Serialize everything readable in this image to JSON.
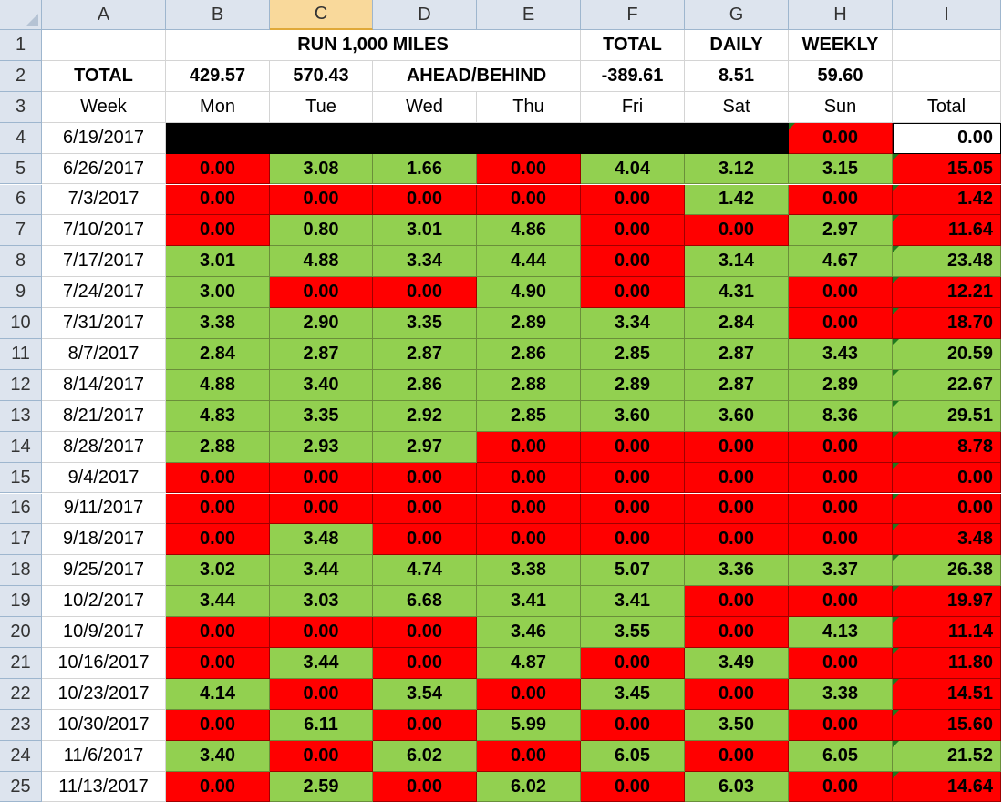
{
  "columns": [
    "A",
    "B",
    "C",
    "D",
    "E",
    "F",
    "G",
    "H",
    "I"
  ],
  "selected_column": "C",
  "header_rows": [
    {
      "row": 1,
      "cells": [
        {
          "col": "B",
          "span": 4,
          "text": "RUN 1,000 MILES",
          "bold": true
        },
        {
          "col": "F",
          "text": "TOTAL",
          "bold": true
        },
        {
          "col": "G",
          "text": "DAILY",
          "bold": true
        },
        {
          "col": "H",
          "text": "WEEKLY",
          "bold": true
        }
      ]
    },
    {
      "row": 2,
      "cells": [
        {
          "col": "A",
          "text": "TOTAL",
          "bold": true
        },
        {
          "col": "B",
          "text": "429.57",
          "bold": true
        },
        {
          "col": "C",
          "text": "570.43",
          "bold": true
        },
        {
          "col": "D",
          "span": 2,
          "text": "AHEAD/BEHIND",
          "bold": true
        },
        {
          "col": "F",
          "text": "-389.61",
          "bold": true
        },
        {
          "col": "G",
          "text": "8.51",
          "bold": true
        },
        {
          "col": "H",
          "text": "59.60",
          "bold": true
        }
      ]
    },
    {
      "row": 3,
      "cells": [
        {
          "col": "A",
          "text": "Week"
        },
        {
          "col": "B",
          "text": "Mon"
        },
        {
          "col": "C",
          "text": "Tue"
        },
        {
          "col": "D",
          "text": "Wed"
        },
        {
          "col": "E",
          "text": "Thu"
        },
        {
          "col": "F",
          "text": "Fri"
        },
        {
          "col": "G",
          "text": "Sat"
        },
        {
          "col": "H",
          "text": "Sun"
        },
        {
          "col": "I",
          "text": "Total"
        }
      ]
    }
  ],
  "weeks": [
    {
      "row": 4,
      "week": "6/19/2017",
      "days": [
        null,
        null,
        null,
        null,
        null,
        null,
        "0.00"
      ],
      "total": "0.00"
    },
    {
      "row": 5,
      "week": "6/26/2017",
      "days": [
        "0.00",
        "3.08",
        "1.66",
        "0.00",
        "4.04",
        "3.12",
        "3.15"
      ],
      "total": "15.05"
    },
    {
      "row": 6,
      "week": "7/3/2017",
      "days": [
        "0.00",
        "0.00",
        "0.00",
        "0.00",
        "0.00",
        "1.42",
        "0.00"
      ],
      "total": "1.42"
    },
    {
      "row": 7,
      "week": "7/10/2017",
      "days": [
        "0.00",
        "0.80",
        "3.01",
        "4.86",
        "0.00",
        "0.00",
        "2.97"
      ],
      "total": "11.64"
    },
    {
      "row": 8,
      "week": "7/17/2017",
      "days": [
        "3.01",
        "4.88",
        "3.34",
        "4.44",
        "0.00",
        "3.14",
        "4.67"
      ],
      "total": "23.48"
    },
    {
      "row": 9,
      "week": "7/24/2017",
      "days": [
        "3.00",
        "0.00",
        "0.00",
        "4.90",
        "0.00",
        "4.31",
        "0.00"
      ],
      "total": "12.21"
    },
    {
      "row": 10,
      "week": "7/31/2017",
      "days": [
        "3.38",
        "2.90",
        "3.35",
        "2.89",
        "3.34",
        "2.84",
        "0.00"
      ],
      "total": "18.70"
    },
    {
      "row": 11,
      "week": "8/7/2017",
      "days": [
        "2.84",
        "2.87",
        "2.87",
        "2.86",
        "2.85",
        "2.87",
        "3.43"
      ],
      "total": "20.59"
    },
    {
      "row": 12,
      "week": "8/14/2017",
      "days": [
        "4.88",
        "3.40",
        "2.86",
        "2.88",
        "2.89",
        "2.87",
        "2.89"
      ],
      "total": "22.67"
    },
    {
      "row": 13,
      "week": "8/21/2017",
      "days": [
        "4.83",
        "3.35",
        "2.92",
        "2.85",
        "3.60",
        "3.60",
        "8.36"
      ],
      "total": "29.51"
    },
    {
      "row": 14,
      "week": "8/28/2017",
      "days": [
        "2.88",
        "2.93",
        "2.97",
        "0.00",
        "0.00",
        "0.00",
        "0.00"
      ],
      "total": "8.78"
    },
    {
      "row": 15,
      "week": "9/4/2017",
      "days": [
        "0.00",
        "0.00",
        "0.00",
        "0.00",
        "0.00",
        "0.00",
        "0.00"
      ],
      "total": "0.00"
    },
    {
      "row": 16,
      "week": "9/11/2017",
      "days": [
        "0.00",
        "0.00",
        "0.00",
        "0.00",
        "0.00",
        "0.00",
        "0.00"
      ],
      "total": "0.00"
    },
    {
      "row": 17,
      "week": "9/18/2017",
      "days": [
        "0.00",
        "3.48",
        "0.00",
        "0.00",
        "0.00",
        "0.00",
        "0.00"
      ],
      "total": "3.48"
    },
    {
      "row": 18,
      "week": "9/25/2017",
      "days": [
        "3.02",
        "3.44",
        "4.74",
        "3.38",
        "5.07",
        "3.36",
        "3.37"
      ],
      "total": "26.38"
    },
    {
      "row": 19,
      "week": "10/2/2017",
      "days": [
        "3.44",
        "3.03",
        "6.68",
        "3.41",
        "3.41",
        "0.00",
        "0.00"
      ],
      "total": "19.97"
    },
    {
      "row": 20,
      "week": "10/9/2017",
      "days": [
        "0.00",
        "0.00",
        "0.00",
        "3.46",
        "3.55",
        "0.00",
        "4.13"
      ],
      "total": "11.14"
    },
    {
      "row": 21,
      "week": "10/16/2017",
      "days": [
        "0.00",
        "3.44",
        "0.00",
        "4.87",
        "0.00",
        "3.49",
        "0.00"
      ],
      "total": "11.80"
    },
    {
      "row": 22,
      "week": "10/23/2017",
      "days": [
        "4.14",
        "0.00",
        "3.54",
        "0.00",
        "3.45",
        "0.00",
        "3.38"
      ],
      "total": "14.51"
    },
    {
      "row": 23,
      "week": "10/30/2017",
      "days": [
        "0.00",
        "6.11",
        "0.00",
        "5.99",
        "0.00",
        "3.50",
        "0.00"
      ],
      "total": "15.60"
    },
    {
      "row": 24,
      "week": "11/6/2017",
      "days": [
        "3.40",
        "0.00",
        "6.02",
        "0.00",
        "6.05",
        "0.00",
        "6.05"
      ],
      "total": "21.52"
    },
    {
      "row": 25,
      "week": "11/13/2017",
      "days": [
        "0.00",
        "2.59",
        "0.00",
        "6.02",
        "0.00",
        "6.03",
        "0.00"
      ],
      "total": "14.64"
    }
  ],
  "colors": {
    "green": "#92d050",
    "red": "#ff0000",
    "header_bg": "#dde4ee",
    "selected_header": "#f9d99b"
  }
}
